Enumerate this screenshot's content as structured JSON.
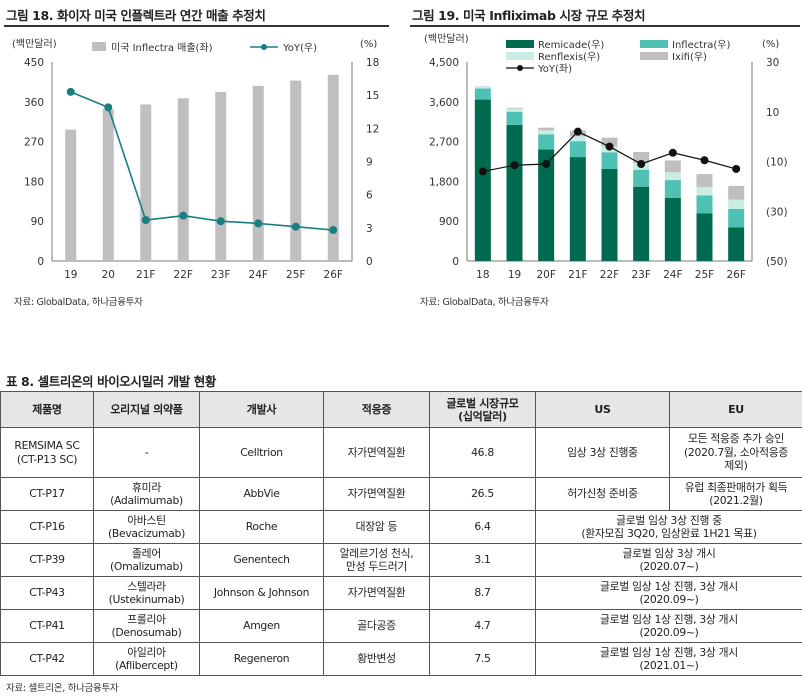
{
  "figure18": {
    "title": "그림 18. 화이자 미국 인플렉트라 연간 매출 추정치",
    "y_left_unit": "(백만달러)",
    "y_right_unit": "(%)",
    "source": "자료: GlobalData, 하나금융투자",
    "colors": {
      "bar": "#bfbfbf",
      "line": "#1a7f80"
    }
  },
  "figure19": {
    "title": "그림 19. 미국 Infliximab 시장 규모 추정치",
    "y_left_unit": "(백만달러)",
    "y_right_unit": "(%)",
    "source": "자료: GlobalData, 하나금융투자",
    "colors": {
      "remicade": "#006a4e",
      "inflectra": "#4fc1b2",
      "renflexis": "#c9ece5",
      "ixifi": "#bfbfbf",
      "yoy": "#111111"
    }
  },
  "chart_data": [
    {
      "type": "bar",
      "categories": [
        "19",
        "20",
        "21F",
        "22F",
        "23F",
        "24F",
        "25F",
        "26F"
      ],
      "series": [
        {
          "name": "미국 Inflectra 매출(좌)",
          "type": "bar",
          "axis": "left",
          "values": [
            297,
            343,
            354,
            368,
            382,
            396,
            408,
            421
          ]
        },
        {
          "name": "YoY(우)",
          "type": "line",
          "axis": "right",
          "values": [
            15.3,
            13.9,
            3.7,
            4.1,
            3.6,
            3.4,
            3.1,
            2.8
          ]
        }
      ],
      "y_left": {
        "ylim": [
          0,
          450
        ],
        "ticks": [
          "0",
          "90",
          "180",
          "270",
          "360",
          "450"
        ]
      },
      "y_right": {
        "ylim": [
          0,
          18
        ],
        "ticks": [
          "0",
          "3",
          "6",
          "9",
          "12",
          "15",
          "18"
        ]
      },
      "legend_position": "top",
      "grid": false
    },
    {
      "type": "bar",
      "stacked": true,
      "categories": [
        "18",
        "19",
        "20F",
        "21F",
        "22F",
        "23F",
        "24F",
        "25F",
        "26F"
      ],
      "series": [
        {
          "name": "Remicade(우)",
          "type": "bar",
          "axis": "left",
          "values": [
            3650,
            3080,
            2520,
            2350,
            2080,
            1680,
            1430,
            1080,
            760
          ]
        },
        {
          "name": "Inflectra(우)",
          "type": "bar",
          "axis": "left",
          "values": [
            250,
            295,
            345,
            360,
            380,
            385,
            400,
            405,
            420
          ]
        },
        {
          "name": "Renflexis(우)",
          "type": "bar",
          "axis": "left",
          "values": [
            40,
            70,
            90,
            110,
            130,
            150,
            175,
            190,
            210
          ]
        },
        {
          "name": "Ixifi(우)",
          "type": "bar",
          "axis": "left",
          "values": [
            10,
            20,
            60,
            130,
            200,
            250,
            270,
            290,
            310
          ]
        },
        {
          "name": "YoY(좌)",
          "type": "line",
          "axis": "right",
          "values": [
            -14,
            -11.5,
            -11,
            2,
            -4,
            -11,
            -6.5,
            -9.5,
            -13
          ]
        }
      ],
      "y_left": {
        "ylim": [
          0,
          4500
        ],
        "ticks": [
          "0",
          "900",
          "1,800",
          "2,700",
          "3,600",
          "4,500"
        ]
      },
      "y_right": {
        "ylim": [
          -50,
          30
        ],
        "ticks": [
          "30",
          "10",
          "(10)",
          "(30)",
          "(50)"
        ]
      },
      "legend_position": "top",
      "grid": false
    }
  ],
  "table8": {
    "title": "표 8. 셀트리온의 바이오시밀러 개발 현황",
    "headers": [
      "제품명",
      "오리지널 의약품",
      "개발사",
      "적응증",
      "글로벌 시장규모",
      "(십억달러)",
      "US",
      "EU"
    ],
    "rows": [
      {
        "product": "REMSIMA SC",
        "product2": "(CT-P13 SC)",
        "original": "-",
        "original2": "",
        "developer": "Celltrion",
        "indication": "자가면역질환",
        "indication2": "",
        "market": "46.8",
        "us": "임상 3상 진행중",
        "eu": "모든 적응증 추가 승인",
        "eu2": "(2020.7월, 소아적응증",
        "eu3": "제외)"
      },
      {
        "product": "CT-P17",
        "original": "휴미라",
        "original2": "(Adalimumab)",
        "developer": "AbbVie",
        "indication": "자가면역질환",
        "indication2": "",
        "market": "26.5",
        "us": "허가신청 준비중",
        "eu": "유럽 최종판매허가 획득",
        "eu2": "(2021.2월)"
      },
      {
        "product": "CT-P16",
        "original": "아바스틴",
        "original2": "(Bevacizumab)",
        "developer": "Roche",
        "indication": "대장암 등",
        "indication2": "",
        "market": "6.4",
        "global": "글로벌 임상 3상 진행 중",
        "global2": "(환자모집 3Q20, 임상완료 1H21 목표)"
      },
      {
        "product": "CT-P39",
        "original": "졸레어",
        "original2": "(Omalizumab)",
        "developer": "Genentech",
        "indication": "알레르기성 천식,",
        "indication2": "만성 두드러기",
        "market": "3.1",
        "global": "글로벌 임상 3상 개시",
        "global2": "(2020.07~)"
      },
      {
        "product": "CT-P43",
        "original": "스텔라라",
        "original2": "(Ustekinumab)",
        "developer": "Johnson & Johnson",
        "indication": "자가면역질환",
        "indication2": "",
        "market": "8.7",
        "global": "글로벌 임상 1상 진행, 3상 개시",
        "global2": "(2020.09~)"
      },
      {
        "product": "CT-P41",
        "original": "프롤리아",
        "original2": "(Denosumab)",
        "developer": "Amgen",
        "indication": "골다공증",
        "indication2": "",
        "market": "4.7",
        "global": "글로벌 임상 1상 진행, 3상 개시",
        "global2": "(2020.09~)"
      },
      {
        "product": "CT-P42",
        "original": "아일리아",
        "original2": "(Aflibercept)",
        "developer": "Regeneron",
        "indication": "황반변성",
        "indication2": "",
        "market": "7.5",
        "global": "글로벌 임상 1상 진행, 3상 개시",
        "global2": "(2021.01~)"
      }
    ],
    "source": "자료: 셀트리온, 하나금융투자"
  }
}
